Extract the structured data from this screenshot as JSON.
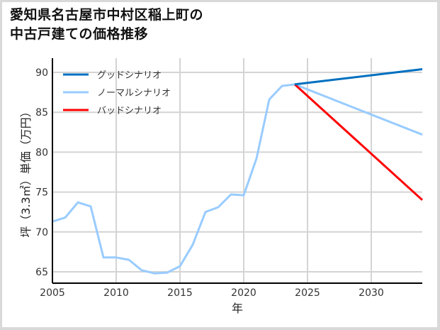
{
  "title_lines": [
    "愛知県名古屋市中村区稲上町の",
    "中古戸建ての価格推移"
  ],
  "chart_data": {
    "type": "line",
    "title": "愛知県名古屋市中村区稲上町の中古戸建ての価格推移",
    "xlabel": "年",
    "ylabel": "坪（3.3㎡）単価（万円）",
    "xlim": [
      2005,
      2034
    ],
    "ylim": [
      63.5,
      92
    ],
    "x_ticks": [
      2005,
      2010,
      2015,
      2020,
      2025,
      2030
    ],
    "y_ticks": [
      65,
      70,
      75,
      80,
      85,
      90
    ],
    "grid": true,
    "legend_position": "upper left",
    "series": [
      {
        "name": "グッドシナリオ",
        "color": "#0070c0",
        "x": [
          2024,
          2034
        ],
        "values": [
          88.5,
          90.4
        ]
      },
      {
        "name": "ノーマルシナリオ",
        "color": "#99ccff",
        "x": [
          2005,
          2006,
          2007,
          2008,
          2009,
          2010,
          2011,
          2012,
          2013,
          2014,
          2015,
          2016,
          2017,
          2018,
          2019,
          2020,
          2021,
          2022,
          2023,
          2024,
          2034
        ],
        "values": [
          71.3,
          71.8,
          73.7,
          73.2,
          66.8,
          66.8,
          66.5,
          65.2,
          64.8,
          64.9,
          65.7,
          68.4,
          72.5,
          73.1,
          74.7,
          74.6,
          79.2,
          86.6,
          88.3,
          88.5,
          82.2
        ]
      },
      {
        "name": "バッドシナリオ",
        "color": "#ff0000",
        "x": [
          2024,
          2034
        ],
        "values": [
          88.5,
          74.0
        ]
      }
    ]
  }
}
